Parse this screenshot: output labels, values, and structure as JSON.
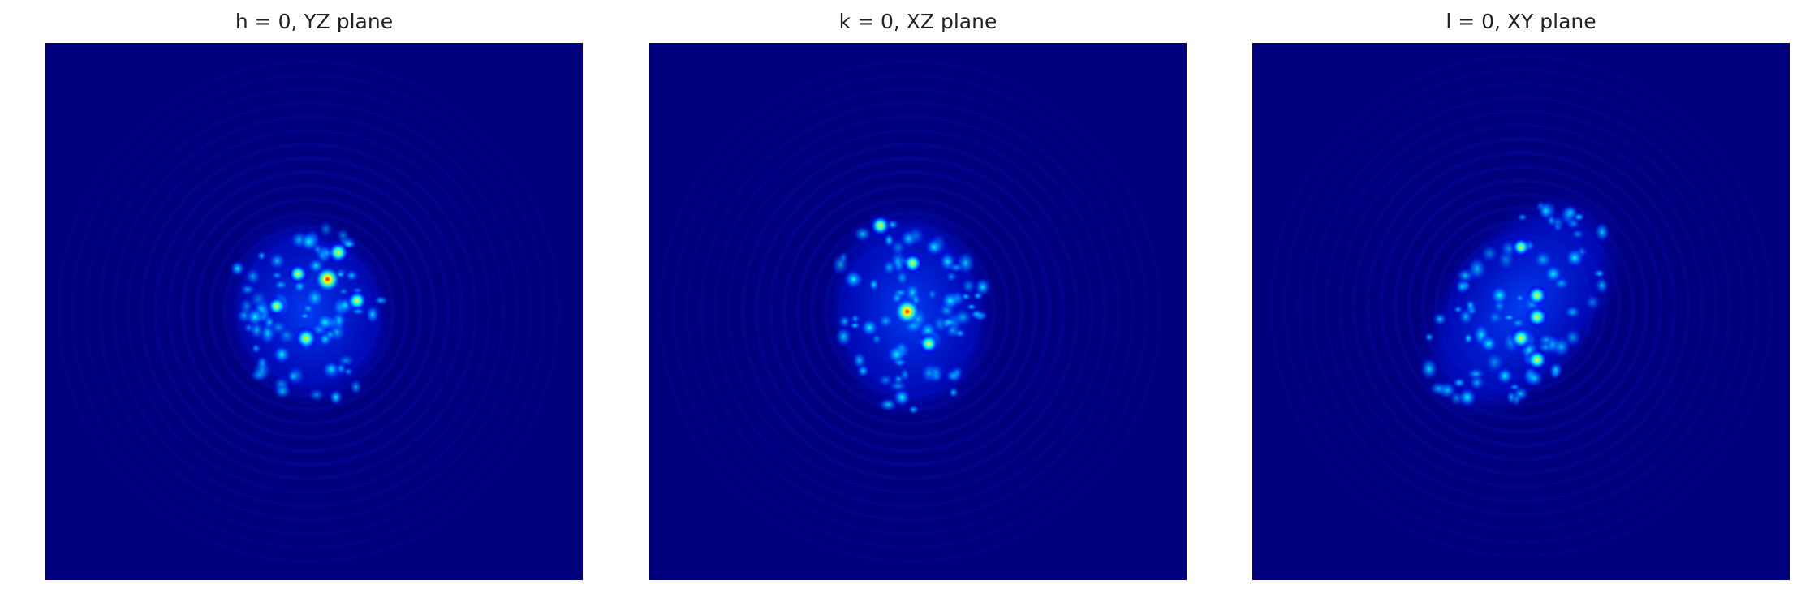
{
  "chart_data": [
    {
      "type": "heatmap",
      "title": "h = 0, YZ plane",
      "axes": "off",
      "grid": false,
      "colormap": "jet",
      "colors": {
        "background": "#00007f",
        "low": "#0000ff",
        "mid": "#00ffff",
        "high": "#ffff00",
        "peak": "#ff0000"
      },
      "speckle_region": {
        "center": [
          0.49,
          0.5
        ],
        "radii": [
          0.15,
          0.18
        ],
        "rotation_deg": -15
      },
      "hotspots": [
        {
          "x": 0.525,
          "y": 0.44,
          "v": 1.0
        },
        {
          "x": 0.485,
          "y": 0.55,
          "v": 0.9
        },
        {
          "x": 0.545,
          "y": 0.39,
          "v": 0.85
        },
        {
          "x": 0.58,
          "y": 0.48,
          "v": 0.75
        },
        {
          "x": 0.47,
          "y": 0.43,
          "v": 0.65
        },
        {
          "x": 0.43,
          "y": 0.49,
          "v": 0.6
        },
        {
          "x": 0.39,
          "y": 0.51,
          "v": 0.55
        },
        {
          "x": 0.49,
          "y": 0.37,
          "v": 0.5
        },
        {
          "x": 0.52,
          "y": 0.52,
          "v": 0.45
        },
        {
          "x": 0.44,
          "y": 0.58,
          "v": 0.45
        }
      ]
    },
    {
      "type": "heatmap",
      "title": "k = 0, XZ plane",
      "axes": "off",
      "grid": false,
      "colormap": "jet",
      "colors": {
        "background": "#00007f",
        "low": "#0000ff",
        "mid": "#00ffff",
        "high": "#ffff00",
        "peak": "#ff0000"
      },
      "speckle_region": {
        "center": [
          0.485,
          0.5
        ],
        "radii": [
          0.15,
          0.2
        ],
        "rotation_deg": -5
      },
      "hotspots": [
        {
          "x": 0.48,
          "y": 0.5,
          "v": 1.0
        },
        {
          "x": 0.43,
          "y": 0.34,
          "v": 0.8
        },
        {
          "x": 0.49,
          "y": 0.41,
          "v": 0.7
        },
        {
          "x": 0.52,
          "y": 0.56,
          "v": 0.7
        },
        {
          "x": 0.38,
          "y": 0.44,
          "v": 0.55
        },
        {
          "x": 0.46,
          "y": 0.58,
          "v": 0.55
        },
        {
          "x": 0.56,
          "y": 0.48,
          "v": 0.5
        },
        {
          "x": 0.41,
          "y": 0.53,
          "v": 0.45
        },
        {
          "x": 0.47,
          "y": 0.66,
          "v": 0.45
        },
        {
          "x": 0.53,
          "y": 0.38,
          "v": 0.4
        }
      ]
    },
    {
      "type": "heatmap",
      "title": "l = 0, XY plane",
      "axes": "off",
      "grid": false,
      "colormap": "jet",
      "colors": {
        "background": "#00007f",
        "low": "#0000ff",
        "mid": "#00ffff",
        "high": "#ffff00",
        "peak": "#ff0000"
      },
      "speckle_region": {
        "center": [
          0.5,
          0.49
        ],
        "radii": [
          0.14,
          0.24
        ],
        "rotation_deg": 38
      },
      "hotspots": [
        {
          "x": 0.5,
          "y": 0.55,
          "v": 0.85
        },
        {
          "x": 0.53,
          "y": 0.51,
          "v": 0.8
        },
        {
          "x": 0.53,
          "y": 0.59,
          "v": 0.8
        },
        {
          "x": 0.53,
          "y": 0.47,
          "v": 0.7
        },
        {
          "x": 0.5,
          "y": 0.38,
          "v": 0.6
        },
        {
          "x": 0.46,
          "y": 0.47,
          "v": 0.55
        },
        {
          "x": 0.6,
          "y": 0.4,
          "v": 0.5
        },
        {
          "x": 0.4,
          "y": 0.66,
          "v": 0.5
        },
        {
          "x": 0.56,
          "y": 0.43,
          "v": 0.45
        },
        {
          "x": 0.44,
          "y": 0.56,
          "v": 0.45
        },
        {
          "x": 0.47,
          "y": 0.62,
          "v": 0.4
        }
      ]
    }
  ]
}
